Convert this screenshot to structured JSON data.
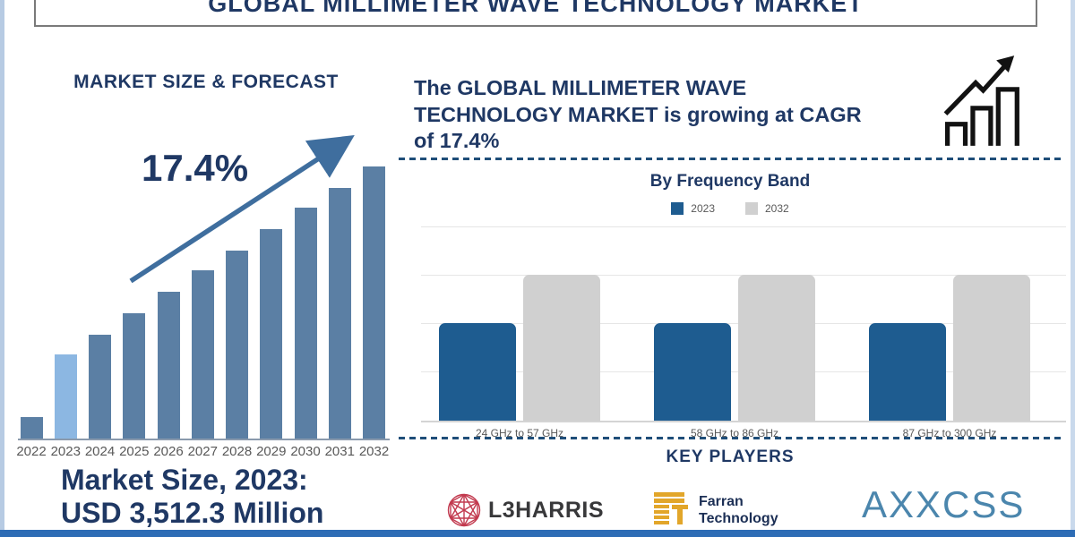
{
  "header": {
    "title": "GLOBAL MILLIMETER WAVE TECHNOLOGY MARKET"
  },
  "left_panel": {
    "heading": "MARKET SIZE & FORECAST",
    "cagr_label": "17.4%",
    "market_size_line1": "Market Size, 2023:",
    "market_size_line2": "USD 3,512.3 Million"
  },
  "right_panel": {
    "cagr_text_line1": "The GLOBAL MILLIMETER WAVE",
    "cagr_text_line2": "TECHNOLOGY MARKET is growing at CAGR",
    "cagr_text_line3": "of 17.4%",
    "growth_icon": "bar-chart-growth-icon",
    "frequency_chart_title": "By Frequency Band",
    "legend": [
      {
        "label": "2023",
        "color": "#1e5c90"
      },
      {
        "label": "2032",
        "color": "#d0d0d0"
      }
    ],
    "key_players_heading": "KEY PLAYERS",
    "key_players": [
      {
        "name": "L3HARRIS",
        "icon": "l3harris-globe-icon",
        "icon_color": "#c23a4f",
        "text_color": "#38383a"
      },
      {
        "name_line1": "Farran",
        "name_line2": "Technology",
        "icon": "farran-stripes-icon",
        "icon_color": "#e2a62a",
        "text_color": "#1c2f55"
      },
      {
        "name": "AXXCSS",
        "text_color": "#4b86ad"
      }
    ]
  },
  "colors": {
    "heading_navy": "#1f3864",
    "left_bar": "#5b7fa4",
    "left_bar_highlight": "#8cb7e2",
    "trend_arrow": "#3f6e9e",
    "dashed_divider": "#1f4e79",
    "bottom_bar": "#2d6cb5",
    "side_accent": "#b7cbe3"
  },
  "chart_data": [
    {
      "name": "market_size_forecast",
      "type": "bar",
      "title": "MARKET SIZE & FORECAST",
      "categories": [
        "2022",
        "2023",
        "2024",
        "2025",
        "2026",
        "2027",
        "2028",
        "2029",
        "2030",
        "2031",
        "2032"
      ],
      "values_relative": [
        0.08,
        0.31,
        0.38,
        0.46,
        0.54,
        0.62,
        0.69,
        0.77,
        0.85,
        0.92,
        1.0
      ],
      "value_note": "no numeric y-axis shown; heights relative to 2032 bar",
      "highlight_category": "2023",
      "bar_color": "#5b7fa4",
      "highlight_color": "#8cb7e2",
      "annotation": "17.4% CAGR trend arrow rising left-to-right",
      "footnote": "Market Size, 2023: USD 3,512.3 Million",
      "xlabel": "",
      "ylabel": "",
      "grid": false
    },
    {
      "name": "by_frequency_band",
      "type": "bar",
      "title": "By Frequency Band",
      "categories": [
        "24 GHz to 57 GHz",
        "58 GHz to 86 GHz",
        "87 GHz to 300 GHz"
      ],
      "series": [
        {
          "name": "2023",
          "color": "#1e5c90",
          "values_relative": [
            0.5,
            0.5,
            0.5
          ]
        },
        {
          "name": "2032",
          "color": "#d0d0d0",
          "values_relative": [
            0.75,
            0.75,
            0.75
          ]
        }
      ],
      "value_note": "no numeric y-axis shown; heights relative to chart top gridline",
      "legend_position": "top",
      "grid": true,
      "ylim": [
        0,
        1
      ]
    }
  ]
}
